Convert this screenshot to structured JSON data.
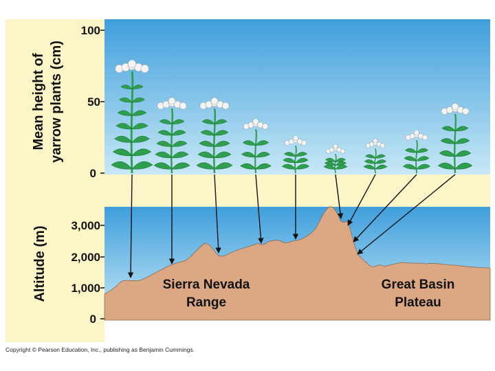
{
  "top_panel": {
    "ylabel_line1": "Mean height of",
    "ylabel_line2": "yarrow plants (cm)",
    "ticks": [
      "100",
      "50",
      "0"
    ]
  },
  "bottom_panel": {
    "ylabel": "Altitude (m)",
    "ticks": [
      "3,000",
      "2,000",
      "1,000",
      "0"
    ],
    "region_left_line1": "Sierra Nevada",
    "region_left_line2": "Range",
    "region_right_line1": "Great Basin",
    "region_right_line2": "Plateau"
  },
  "colors": {
    "sky_top": "#3f9fdc",
    "sky_bottom": "#c8e8f6",
    "band": "#fbf5c8",
    "ground": "#dca883",
    "plant": "#2e9e4f",
    "flower": "#f4f4f4"
  },
  "copyright": "Copyright © Pearson Education, Inc., publishing as Benjamin Cummings."
}
